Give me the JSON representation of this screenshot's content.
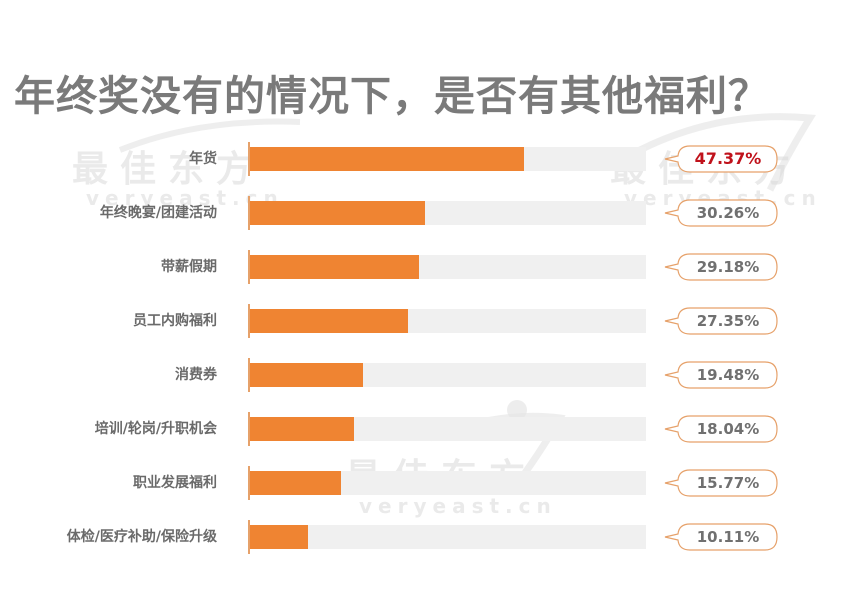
{
  "title": "年终奖没有的情况下，是否有其他福利？",
  "watermark": {
    "cn": "最佳东方",
    "en": "veryeast.cn"
  },
  "colors": {
    "bar": "#ef8432",
    "track": "#f0f0f0",
    "bubble_border": "#e6a16a",
    "highlight_value": "#c0121b",
    "value_text": "#707070",
    "title_text": "#7a7a7a",
    "label_text": "#6a6a6a"
  },
  "rows": [
    {
      "label": "年货",
      "value_label": "47.37%",
      "value": 47.37,
      "highlight": true
    },
    {
      "label": "年终晚宴/团建活动",
      "value_label": "30.26%",
      "value": 30.26,
      "highlight": false
    },
    {
      "label": "带薪假期",
      "value_label": "29.18%",
      "value": 29.18,
      "highlight": false
    },
    {
      "label": "员工内购福利",
      "value_label": "27.35%",
      "value": 27.35,
      "highlight": false
    },
    {
      "label": "消费券",
      "value_label": "19.48%",
      "value": 19.48,
      "highlight": false
    },
    {
      "label": "培训/轮岗/升职机会",
      "value_label": "18.04%",
      "value": 18.04,
      "highlight": false
    },
    {
      "label": "职业发展福利",
      "value_label": "15.77%",
      "value": 15.77,
      "highlight": false
    },
    {
      "label": "体检/医疗补助/保险升级",
      "value_label": "10.11%",
      "value": 10.11,
      "highlight": false
    }
  ],
  "chart_data": {
    "type": "bar",
    "orientation": "horizontal",
    "title": "年终奖没有的情况下，是否有其他福利？",
    "categories": [
      "年货",
      "年终晚宴/团建活动",
      "带薪假期",
      "员工内购福利",
      "消费券",
      "培训/轮岗/升职机会",
      "职业发展福利",
      "体检/医疗补助/保险升级"
    ],
    "values": [
      47.37,
      30.26,
      29.18,
      27.35,
      19.48,
      18.04,
      15.77,
      10.11
    ],
    "value_labels": [
      "47.37%",
      "30.26%",
      "29.18%",
      "27.35%",
      "19.48%",
      "18.04%",
      "15.77%",
      "10.11%"
    ],
    "unit": "%",
    "xlabel": "",
    "ylabel": "",
    "grid": false,
    "legend": "none",
    "annotations": [
      "最佳东方 veryeast.cn (watermark)"
    ]
  }
}
